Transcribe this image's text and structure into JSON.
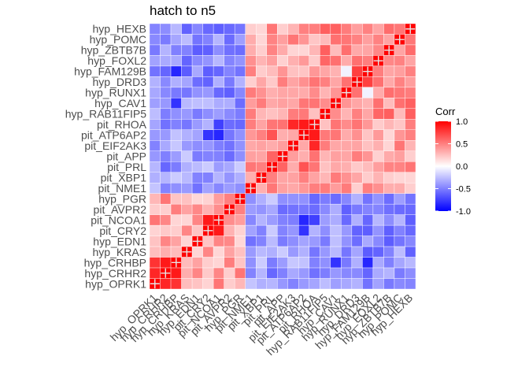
{
  "chart_data": {
    "type": "heatmap",
    "title": "hatch to n5",
    "variables": [
      "hyp_OPRK1",
      "hyp_CRHR2",
      "hyp_CRHBP",
      "hyp_KRAS",
      "hyp_EDN1",
      "pit_CRY2",
      "pit_NCOA1",
      "pit_AVPR2",
      "hyp_PGR",
      "pit_NME1",
      "pit_XBP1",
      "pit_PRL",
      "pit_APP",
      "pit_EIF2AK3",
      "pit_ATP6AP2",
      "pit_RHOA",
      "hyp_RAB11FIP5",
      "hyp_CAV1",
      "hyp_RUNX1",
      "hyp_DRD3",
      "hyp_FAM129B",
      "hyp_FOXL2",
      "hyp_ZBTB7B",
      "hyp_POMC",
      "hyp_HEXB"
    ],
    "groups": {
      "A": [
        "hyp_OPRK1",
        "hyp_CRHR2",
        "hyp_CRHBP",
        "hyp_KRAS",
        "hyp_EDN1",
        "pit_CRY2",
        "pit_NCOA1",
        "pit_AVPR2",
        "hyp_PGR"
      ],
      "B": [
        "pit_NME1",
        "pit_XBP1",
        "pit_PRL",
        "pit_APP",
        "pit_EIF2AK3",
        "pit_ATP6AP2",
        "pit_RHOA"
      ],
      "C": [
        "hyp_RAB11FIP5",
        "hyp_CAV1",
        "hyp_RUNX1",
        "hyp_DRD3",
        "hyp_FAM129B",
        "hyp_FOXL2",
        "hyp_ZBTB7B",
        "hyp_POMC",
        "hyp_HEXB"
      ]
    },
    "approx_block_correlation": {
      "A-A": 0.35,
      "B-B": 0.5,
      "C-C": 0.45,
      "A-B": -0.4,
      "A-C": -0.45,
      "B-C": 0.35
    },
    "notable_cells": [
      {
        "a": "hyp_OPRK1",
        "b": "hyp_CRHR2",
        "value": 0.85
      },
      {
        "a": "hyp_OPRK1",
        "b": "hyp_CRHBP",
        "value": 0.8
      },
      {
        "a": "hyp_CRHR2",
        "b": "hyp_CRHBP",
        "value": 0.9
      },
      {
        "a": "pit_RHOA",
        "b": "pit_ATP6AP2",
        "value": 0.9
      },
      {
        "a": "pit_RHOA",
        "b": "pit_EIF2AK3",
        "value": 0.85
      },
      {
        "a": "hyp_FAM129B",
        "b": "hyp_DRD3",
        "value": 0.75
      },
      {
        "a": "hyp_FAM129B",
        "b": "hyp_RUNX1",
        "value": -0.05
      },
      {
        "a": "pit_CRY2",
        "b": "pit_NCOA1",
        "value": 0.9
      },
      {
        "a": "pit_ATP6AP2",
        "b": "pit_NCOA1",
        "value": -0.85
      },
      {
        "a": "pit_ATP6AP2",
        "b": "pit_CRY2",
        "value": -0.8
      },
      {
        "a": "pit_RHOA",
        "b": "pit_NCOA1",
        "value": -0.75
      },
      {
        "a": "hyp_FAM129B",
        "b": "hyp_CRHBP",
        "value": -0.85
      },
      {
        "a": "hyp_CAV1",
        "b": "hyp_CRHBP",
        "value": -0.8
      }
    ],
    "fill_scale": {
      "low": "#0000ff",
      "mid": "#ffffff",
      "high": "#ff0000",
      "limits": [
        -1,
        1
      ]
    },
    "legend": {
      "title": "Corr",
      "breaks": [
        1.0,
        0.5,
        0.0,
        -0.5,
        -1.0
      ],
      "labels": [
        "1.0",
        "0.5",
        "0.0",
        "-0.5",
        "-1.0"
      ],
      "position": "right"
    }
  }
}
